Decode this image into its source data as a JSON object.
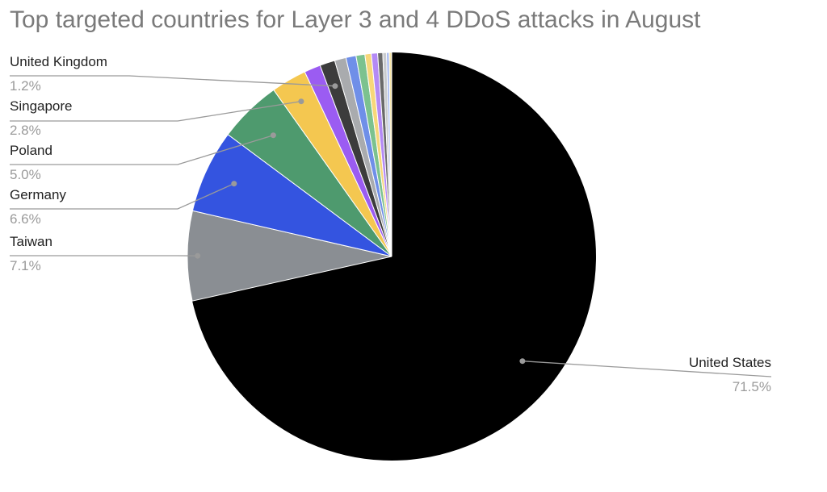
{
  "chart_data": {
    "type": "pie",
    "title": "Top targeted countries for Layer 3 and 4 DDoS attacks in August",
    "slices": [
      {
        "name": "United States",
        "value": 71.5,
        "label": "71.5%",
        "color": "#000000"
      },
      {
        "name": "Taiwan",
        "value": 7.1,
        "label": "7.1%",
        "color": "#8a8e93"
      },
      {
        "name": "Germany",
        "value": 6.6,
        "label": "6.6%",
        "color": "#3454e0"
      },
      {
        "name": "Poland",
        "value": 5.0,
        "label": "5.0%",
        "color": "#4e9a6e"
      },
      {
        "name": "Singapore",
        "value": 2.8,
        "label": "2.8%",
        "color": "#f4c750"
      },
      {
        "name": "",
        "value": 1.3,
        "label": "",
        "color": "#9b5cf2"
      },
      {
        "name": "United Kingdom",
        "value": 1.2,
        "label": "1.2%",
        "color": "#3c3c3c"
      },
      {
        "name": "",
        "value": 0.9,
        "label": "",
        "color": "#a9abae"
      },
      {
        "name": "",
        "value": 0.8,
        "label": "",
        "color": "#6f8fe8"
      },
      {
        "name": "",
        "value": 0.7,
        "label": "",
        "color": "#7cc28f"
      },
      {
        "name": "",
        "value": 0.5,
        "label": "",
        "color": "#f7d77a"
      },
      {
        "name": "",
        "value": 0.5,
        "label": "",
        "color": "#b48af5"
      },
      {
        "name": "",
        "value": 0.4,
        "label": "",
        "color": "#6a6a6a"
      },
      {
        "name": "",
        "value": 0.3,
        "label": "",
        "color": "#c9cbce"
      },
      {
        "name": "",
        "value": 0.2,
        "label": "",
        "color": "#9fb4f0"
      },
      {
        "name": "",
        "value": 0.2,
        "label": "",
        "color": "#f9e7a8"
      }
    ]
  }
}
